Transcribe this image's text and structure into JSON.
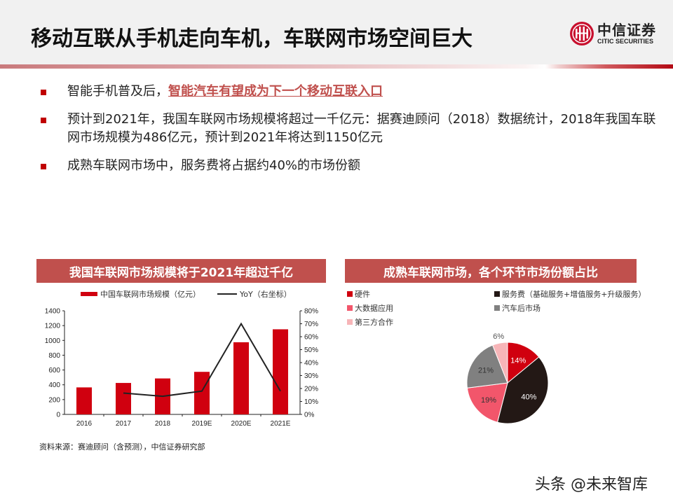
{
  "header": {
    "title": "移动互联从手机走向车机，车联网市场空间巨大",
    "logo": {
      "cn": "中信证券",
      "en": "CITIC SECURITIES",
      "icon": "citic-logo-icon"
    }
  },
  "bullets": [
    {
      "text": "智能手机普及后，",
      "highlight": "智能汽车有望成为下一个移动互联入口"
    },
    {
      "text": "预计到2021年，我国车联网市场规模将超过一千亿元：据赛迪顾问（2018）数据统计，2018年我国车联网市场规模为486亿元，预计到2021年将达到1150亿元"
    },
    {
      "text": "成熟车联网市场中，服务费将占据约40%的市场份额"
    }
  ],
  "left_panel": {
    "title": "我国车联网市场规模将于2021年超过千亿",
    "legend_bar": "中国车联网市场规模（亿元）",
    "legend_line": "YoY（右坐标）",
    "source": "资料来源：赛迪顾问（含预测），中信证券研究部"
  },
  "right_panel": {
    "title": "成熟车联网市场，各个环节市场份额占比",
    "legend": [
      {
        "label": "硬件",
        "color": "#d0000f"
      },
      {
        "label": "服务费（基础服务+增值服务+升级服务）",
        "color": "#231815"
      },
      {
        "label": "大数据应用",
        "color": "#f2566b"
      },
      {
        "label": "汽车后市场",
        "color": "#808080"
      },
      {
        "label": "第三方合作",
        "color": "#f7b5b8"
      }
    ]
  },
  "chart_data": [
    {
      "type": "bar",
      "title": "我国车联网市场规模将于2021年超过千亿",
      "categories": [
        "2016",
        "2017",
        "2018",
        "2019E",
        "2020E",
        "2021E"
      ],
      "series": [
        {
          "name": "中国车联网市场规模（亿元）",
          "type": "bar",
          "axis": "left",
          "color": "#d0000f",
          "values": [
            365,
            425,
            486,
            575,
            975,
            1150
          ]
        },
        {
          "name": "YoY（右坐标）",
          "type": "line",
          "axis": "right",
          "color": "#222222",
          "values": [
            null,
            16.5,
            14.0,
            18.0,
            70.0,
            18.0
          ]
        }
      ],
      "ylim_left": [
        0,
        1400
      ],
      "yticks_left": [
        "0",
        "200",
        "400",
        "600",
        "800",
        "1000",
        "1200",
        "1400"
      ],
      "ylim_right": [
        0,
        80
      ],
      "yticks_right": [
        "0%",
        "10%",
        "20%",
        "30%",
        "40%",
        "50%",
        "60%",
        "70%",
        "80%"
      ],
      "legend_position": "top",
      "grid": false
    },
    {
      "type": "pie",
      "title": "成熟车联网市场，各个环节市场份额占比",
      "categories": [
        "硬件",
        "服务费（基础服务+增值服务+升级服务）",
        "大数据应用",
        "汽车后市场",
        "第三方合作"
      ],
      "values": [
        14,
        40,
        19,
        21,
        6
      ],
      "labels": [
        "14%",
        "40%",
        "19%",
        "21%",
        "6%"
      ],
      "colors": [
        "#d0000f",
        "#231815",
        "#f2566b",
        "#808080",
        "#f7b5b8"
      ],
      "legend_position": "top"
    }
  ],
  "footer": {
    "watermark": "头条 @未来智库"
  }
}
